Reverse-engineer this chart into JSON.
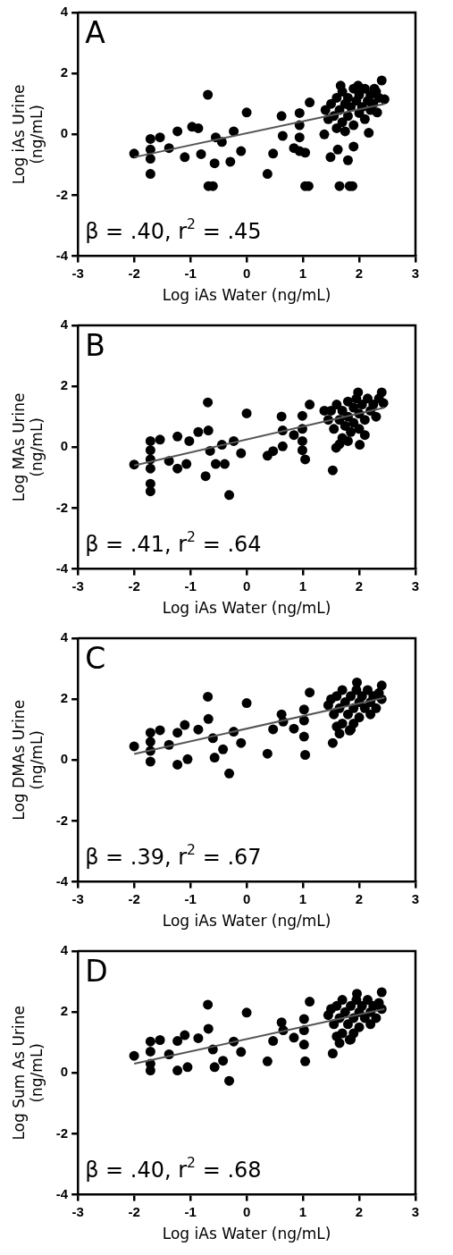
{
  "chart_data": [
    {
      "type": "scatter",
      "xlabel": "Log iAs Water (ng/mL)",
      "ylabel": "Log iAs Urine (ng/mL)",
      "annotations": [
        "A",
        "β = .40, r$^{2}$ = .45"
      ],
      "xlim": [
        -3,
        3
      ],
      "ylim": [
        -4,
        4
      ],
      "xticks": [
        -3,
        -2,
        -1,
        0,
        1,
        2,
        3
      ],
      "yticks": [
        -4,
        -2,
        0,
        2,
        4
      ],
      "grid": false,
      "legend": false,
      "marker": "circle",
      "series": [
        {
          "color": "#000000",
          "x": [
            -2,
            -1.71,
            -1.71,
            -1.71,
            -1.71,
            -1.54,
            -1.38,
            -1.23,
            -1.1,
            -0.97,
            -0.86,
            -0.81,
            -0.69,
            -0.68,
            -0.6,
            -0.55,
            -0.57,
            -0.44,
            -0.29,
            -0.23,
            -0.1,
            0,
            0.37,
            0.47,
            0.62,
            0.64,
            0.84,
            0.94,
            0.94,
            0.94,
            0.94,
            1.04,
            1.1,
            1.04,
            1.12,
            1.38,
            1.49,
            1.62,
            1.65,
            1.83,
            1.88,
            1.8,
            1.9,
            2.17,
            1.67,
            1.98,
            2.4,
            2.27,
            2.45,
            2.32,
            1.5,
            1.55,
            1.6,
            1.65,
            1.7,
            1.7,
            1.75,
            1.8,
            1.8,
            1.85,
            1.9,
            1.9,
            1.95,
            2.0,
            2.0,
            2.05,
            2.1,
            2.1,
            2.15,
            2.2,
            2.2,
            2.25,
            2.3,
            1.45,
            1.6,
            1.75,
            2.35,
            1.4
          ],
          "values": [
            -0.63,
            -0.15,
            -0.5,
            -0.8,
            -1.3,
            -0.1,
            -0.45,
            0.1,
            -0.75,
            0.25,
            0.2,
            -0.65,
            1.3,
            -1.7,
            -1.7,
            -0.1,
            -0.95,
            -0.25,
            -0.9,
            0.1,
            -0.55,
            0.72,
            -1.3,
            -0.63,
            0.6,
            -0.05,
            -0.45,
            0.7,
            0.3,
            -0.1,
            -0.55,
            -1.7,
            -1.7,
            -0.6,
            1.05,
            0,
            -0.75,
            -0.5,
            -1.7,
            -1.7,
            -1.7,
            -0.85,
            -0.4,
            0.05,
            1.6,
            1.6,
            1.77,
            1.5,
            1.15,
            0.72,
            1.0,
            0.6,
            1.2,
            0.8,
            0.4,
            1.4,
            1.0,
            0.6,
            1.2,
            0.9,
            1.5,
            0.3,
            1.1,
            0.7,
            1.3,
            0.9,
            1.5,
            0.5,
            1.1,
            0.8,
            1.3,
            1.0,
            1.4,
            0.5,
            0.2,
            0.1,
            1.2,
            0.8
          ]
        },
        {
          "type": "line",
          "color": "#555555",
          "x": [
            -2,
            2.45
          ],
          "values": [
            -0.75,
            1.0
          ],
          "marker": "none"
        }
      ]
    },
    {
      "type": "scatter",
      "xlabel": "Log iAs Water (ng/mL)",
      "ylabel": "Log MAs Urine (ng/mL)",
      "annotations": [
        "B",
        "β = .41, r$^{2}$ = .64"
      ],
      "xlim": [
        -3,
        3
      ],
      "ylim": [
        -4,
        4
      ],
      "xticks": [
        -3,
        -2,
        -1,
        0,
        1,
        2,
        3
      ],
      "yticks": [
        -4,
        -2,
        0,
        2,
        4
      ],
      "grid": false,
      "legend": false,
      "marker": "circle",
      "series": [
        {
          "color": "#000000",
          "x": [
            -2,
            -1.71,
            -1.71,
            -1.71,
            -1.71,
            -1.71,
            -1.71,
            -1.54,
            -1.38,
            -1.23,
            -1.23,
            -1.07,
            -1.02,
            -0.86,
            -0.73,
            -0.69,
            -0.68,
            -0.65,
            -0.55,
            -0.44,
            -0.39,
            -0.31,
            -0.23,
            -0.1,
            0,
            0.37,
            0.47,
            0.62,
            0.64,
            0.64,
            0.84,
            0.99,
            0.99,
            0.99,
            0.99,
            1.04,
            1.12,
            1.38,
            1.53,
            1.59,
            1.98,
            2.4,
            2.43,
            2.01,
            1.45,
            1.5,
            1.55,
            1.6,
            1.65,
            1.7,
            1.7,
            1.75,
            1.8,
            1.8,
            1.85,
            1.9,
            1.9,
            1.95,
            2.0,
            2.0,
            2.05,
            2.1,
            2.15,
            2.2,
            2.25,
            2.3,
            2.35,
            1.65,
            1.8,
            2.1
          ],
          "values": [
            -0.57,
            0.2,
            -0.1,
            -0.4,
            -0.7,
            -1.2,
            -1.45,
            0.25,
            -0.45,
            0.35,
            -0.7,
            -0.55,
            0.2,
            0.5,
            -0.95,
            1.47,
            0.55,
            -0.12,
            -0.55,
            0.08,
            -0.55,
            -1.57,
            0.2,
            -0.2,
            1.11,
            -0.28,
            -0.13,
            1.01,
            0.55,
            0.03,
            0.4,
            1.03,
            0.6,
            0.2,
            -0.1,
            -0.4,
            1.4,
            1.2,
            -0.76,
            -0.02,
            1.8,
            1.8,
            1.45,
            0.08,
            0.9,
            1.2,
            0.6,
            1.4,
            0.9,
            0.3,
            1.2,
            0.7,
            1.5,
            1.0,
            0.5,
            1.3,
            0.8,
            1.6,
            1.1,
            0.6,
            1.4,
            0.9,
            1.6,
            1.2,
            1.4,
            1.0,
            1.6,
            0.1,
            0.2,
            0.4
          ]
        },
        {
          "type": "line",
          "color": "#555555",
          "x": [
            -2,
            2.45
          ],
          "values": [
            -0.6,
            1.3
          ],
          "marker": "none"
        }
      ]
    },
    {
      "type": "scatter",
      "xlabel": "Log iAs Water (ng/mL)",
      "ylabel": "Log DMAs Urine (ng/mL)",
      "annotations": [
        "C",
        "β = .39, r$^{2}$ = .67"
      ],
      "xlim": [
        -3,
        3
      ],
      "ylim": [
        -4,
        4
      ],
      "xticks": [
        -3,
        -2,
        -1,
        0,
        1,
        2,
        3
      ],
      "yticks": [
        -4,
        -2,
        0,
        2,
        4
      ],
      "grid": false,
      "legend": false,
      "marker": "circle",
      "series": [
        {
          "color": "#000000",
          "x": [
            -2,
            -1.71,
            -1.71,
            -1.71,
            -1.71,
            -1.54,
            -1.38,
            -1.23,
            -1.23,
            -1.1,
            -1.05,
            -0.86,
            -0.69,
            -0.68,
            -0.6,
            -0.57,
            -0.42,
            -0.31,
            -0.23,
            -0.1,
            0,
            0.37,
            0.47,
            0.62,
            0.65,
            0.84,
            1.02,
            1.02,
            1.02,
            1.04,
            1.12,
            1.53,
            1.65,
            1.83,
            1.96,
            2.4,
            1.45,
            1.5,
            1.55,
            1.6,
            1.65,
            1.7,
            1.7,
            1.75,
            1.8,
            1.85,
            1.9,
            1.9,
            1.95,
            2.0,
            2.0,
            2.05,
            2.1,
            2.15,
            2.2,
            2.2,
            2.25,
            2.3,
            2.35,
            1.6,
            1.85,
            2.4
          ],
          "values": [
            0.45,
            0.9,
            0.6,
            0.3,
            -0.05,
            0.98,
            0.5,
            0.9,
            -0.15,
            1.15,
            0.03,
            1.0,
            2.08,
            1.35,
            0.72,
            0.08,
            0.35,
            -0.44,
            0.93,
            0.56,
            1.87,
            0.21,
            1.01,
            1.5,
            1.26,
            1.03,
            1.66,
            1.3,
            0.77,
            0.17,
            2.22,
            0.56,
            0.87,
            0.97,
            2.55,
            2.45,
            1.8,
            2.0,
            1.5,
            2.1,
            1.7,
            1.2,
            2.3,
            1.9,
            1.5,
            2.1,
            1.7,
            1.2,
            2.3,
            1.9,
            1.4,
            2.1,
            1.7,
            2.3,
            1.9,
            1.5,
            2.1,
            1.7,
            2.2,
            1.1,
            1.0,
            2.0
          ]
        },
        {
          "type": "line",
          "color": "#555555",
          "x": [
            -2,
            2.45
          ],
          "values": [
            0.2,
            2.05
          ],
          "marker": "none"
        }
      ]
    },
    {
      "type": "scatter",
      "xlabel": "Log iAs Water (ng/mL)",
      "ylabel": "Log Sum As Urine (ng/mL)",
      "annotations": [
        "D",
        "β = .40, r$^{2}$ = .68"
      ],
      "xlim": [
        -3,
        3
      ],
      "ylim": [
        -4,
        4
      ],
      "xticks": [
        -3,
        -2,
        -1,
        0,
        1,
        2,
        3
      ],
      "yticks": [
        -4,
        -2,
        0,
        2,
        4
      ],
      "grid": false,
      "legend": false,
      "marker": "circle",
      "series": [
        {
          "color": "#000000",
          "x": [
            -2,
            -1.71,
            -1.71,
            -1.71,
            -1.71,
            -1.54,
            -1.38,
            -1.23,
            -1.23,
            -1.1,
            -1.05,
            -0.86,
            -0.69,
            -0.68,
            -0.6,
            -0.57,
            -0.42,
            -0.31,
            -0.23,
            -0.1,
            0,
            0.37,
            0.47,
            0.62,
            0.65,
            0.84,
            1.02,
            1.02,
            1.02,
            1.04,
            1.12,
            1.53,
            1.65,
            1.83,
            1.96,
            2.4,
            1.45,
            1.5,
            1.55,
            1.6,
            1.65,
            1.7,
            1.7,
            1.75,
            1.8,
            1.85,
            1.9,
            1.9,
            1.95,
            2.0,
            2.0,
            2.05,
            2.1,
            2.15,
            2.2,
            2.2,
            2.25,
            2.3,
            2.35,
            1.6,
            1.85,
            2.4
          ],
          "values": [
            0.56,
            1.03,
            0.7,
            0.3,
            0.08,
            1.08,
            0.61,
            0.08,
            1.05,
            1.24,
            0.19,
            1.14,
            2.24,
            1.45,
            0.77,
            0.19,
            0.4,
            -0.26,
            1.03,
            0.69,
            1.98,
            0.38,
            1.05,
            1.66,
            1.4,
            1.16,
            1.77,
            1.4,
            0.93,
            0.38,
            2.34,
            0.64,
            0.98,
            1.09,
            2.6,
            2.65,
            1.9,
            2.1,
            1.6,
            2.2,
            1.8,
            1.3,
            2.4,
            2.0,
            1.6,
            2.2,
            1.8,
            1.3,
            2.4,
            2.0,
            1.5,
            2.2,
            1.8,
            2.4,
            2.0,
            1.6,
            2.2,
            1.8,
            2.3,
            1.2,
            1.1,
            2.1
          ]
        },
        {
          "type": "line",
          "color": "#555555",
          "x": [
            -2,
            2.45
          ],
          "values": [
            0.3,
            2.1
          ],
          "marker": "none"
        }
      ]
    }
  ]
}
